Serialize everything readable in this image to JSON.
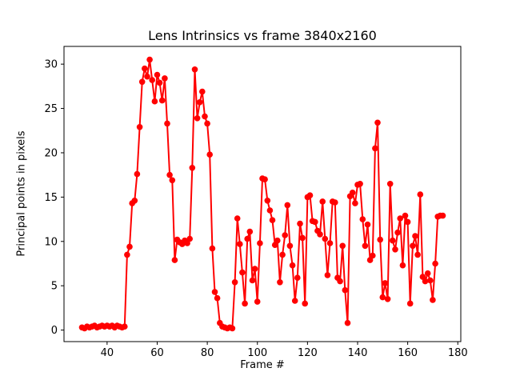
{
  "figure": {
    "title": "Lens Intrinsics vs frame 3840x2160",
    "xlabel": "Frame #",
    "ylabel": "Principal points in pixels"
  },
  "chart_data": {
    "type": "line",
    "title": "Lens Intrinsics vs frame 3840x2160",
    "xlabel": "Frame #",
    "ylabel": "Principal points in pixels",
    "legend": "none",
    "grid": false,
    "line_color": "#ff0000",
    "marker": "o",
    "xlim": [
      22.8,
      181.2
    ],
    "ylim": [
      -1.3,
      32.0
    ],
    "xticks": [
      40,
      60,
      80,
      100,
      120,
      140,
      160,
      180
    ],
    "yticks": [
      0,
      5,
      10,
      15,
      20,
      25,
      30
    ],
    "x": [
      30,
      31,
      32,
      33,
      34,
      35,
      36,
      37,
      38,
      39,
      40,
      41,
      42,
      43,
      44,
      45,
      46,
      47,
      48,
      49,
      50,
      51,
      52,
      53,
      54,
      55,
      56,
      57,
      58,
      59,
      60,
      61,
      62,
      63,
      64,
      65,
      66,
      67,
      68,
      69,
      70,
      71,
      72,
      73,
      74,
      75,
      76,
      77,
      78,
      79,
      80,
      81,
      82,
      83,
      84,
      85,
      86,
      87,
      88,
      89,
      90,
      91,
      92,
      93,
      94,
      95,
      96,
      97,
      98,
      99,
      100,
      101,
      102,
      103,
      104,
      105,
      106,
      107,
      108,
      109,
      110,
      111,
      112,
      113,
      114,
      115,
      116,
      117,
      118,
      119,
      120,
      121,
      122,
      123,
      124,
      125,
      126,
      127,
      128,
      129,
      130,
      131,
      132,
      133,
      134,
      135,
      136,
      137,
      138,
      139,
      140,
      141,
      142,
      143,
      144,
      145,
      146,
      147,
      148,
      149,
      150,
      151,
      152,
      153,
      154,
      155,
      156,
      157,
      158,
      159,
      160,
      161,
      162,
      163,
      164,
      165,
      166,
      167,
      168,
      169,
      170,
      171,
      172,
      173,
      174
    ],
    "y": [
      0.3,
      0.2,
      0.4,
      0.3,
      0.4,
      0.5,
      0.3,
      0.4,
      0.5,
      0.4,
      0.5,
      0.4,
      0.5,
      0.3,
      0.5,
      0.4,
      0.3,
      0.4,
      8.5,
      9.4,
      14.3,
      14.6,
      17.6,
      22.9,
      28.0,
      29.5,
      28.6,
      30.5,
      28.2,
      25.8,
      28.8,
      27.9,
      25.9,
      28.4,
      23.3,
      17.5,
      16.9,
      7.9,
      10.2,
      9.9,
      9.7,
      10.1,
      9.8,
      10.3,
      18.3,
      29.4,
      23.9,
      25.7,
      26.9,
      24.1,
      23.3,
      19.8,
      9.2,
      4.3,
      3.6,
      0.8,
      0.4,
      0.3,
      0.2,
      0.3,
      0.2,
      5.4,
      12.6,
      9.7,
      6.5,
      3.0,
      10.3,
      11.1,
      5.6,
      6.9,
      3.2,
      9.8,
      17.1,
      17.0,
      14.6,
      13.5,
      12.4,
      9.6,
      10.1,
      5.4,
      8.5,
      10.7,
      14.1,
      9.5,
      7.3,
      3.3,
      5.9,
      12.0,
      10.4,
      3.0,
      15.0,
      15.2,
      12.3,
      12.2,
      11.2,
      10.8,
      14.5,
      10.3,
      6.2,
      9.8,
      14.5,
      14.4,
      5.9,
      5.5,
      9.5,
      4.5,
      0.8,
      15.1,
      15.5,
      14.3,
      16.4,
      16.5,
      12.5,
      9.5,
      11.9,
      7.9,
      8.4,
      20.5,
      23.4,
      10.2,
      3.7,
      5.3,
      3.5,
      16.5,
      10.1,
      9.1,
      11.0,
      12.6,
      7.3,
      12.9,
      12.2,
      3.0,
      9.5,
      10.6,
      8.5,
      15.3,
      6.0,
      5.5,
      6.4,
      5.6,
      3.4,
      7.5,
      12.8,
      12.9,
      12.9
    ]
  }
}
